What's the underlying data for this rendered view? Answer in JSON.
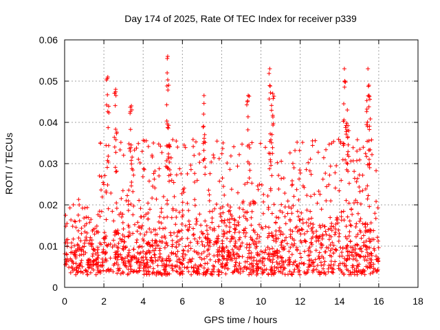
{
  "chart_data": {
    "type": "scatter",
    "title": "Day 174 of 2025, Rate Of TEC Index for receiver p339",
    "xlabel": "GPS time / hours",
    "ylabel": "ROTI / TECUs",
    "xlim": [
      0,
      18
    ],
    "ylim": [
      0,
      0.06
    ],
    "xticks": [
      0,
      2,
      4,
      6,
      8,
      10,
      12,
      14,
      16,
      18
    ],
    "xtick_labels": [
      "0",
      "2",
      "4",
      "6",
      "8",
      "10",
      "12",
      "14",
      "16",
      "18"
    ],
    "yticks": [
      0,
      0.01,
      0.02,
      0.03,
      0.04,
      0.05,
      0.06
    ],
    "ytick_labels": [
      "0",
      "0.01",
      "0.02",
      "0.03",
      "0.04",
      "0.05",
      "0.06"
    ],
    "grid": true,
    "legend": "none",
    "marker": "plus",
    "color": "#ff0000",
    "x_data_range": [
      0,
      16
    ],
    "typical_band": [
      0.003,
      0.02
    ],
    "peaks": [
      {
        "x": 2.2,
        "y": 0.051
      },
      {
        "x": 2.6,
        "y": 0.048
      },
      {
        "x": 3.4,
        "y": 0.044
      },
      {
        "x": 5.25,
        "y": 0.056
      },
      {
        "x": 5.3,
        "y": 0.049
      },
      {
        "x": 7.1,
        "y": 0.0465
      },
      {
        "x": 9.35,
        "y": 0.0465
      },
      {
        "x": 10.45,
        "y": 0.053
      },
      {
        "x": 10.6,
        "y": 0.047
      },
      {
        "x": 14.25,
        "y": 0.053
      },
      {
        "x": 14.4,
        "y": 0.043
      },
      {
        "x": 15.45,
        "y": 0.053
      },
      {
        "x": 15.5,
        "y": 0.049
      }
    ]
  }
}
